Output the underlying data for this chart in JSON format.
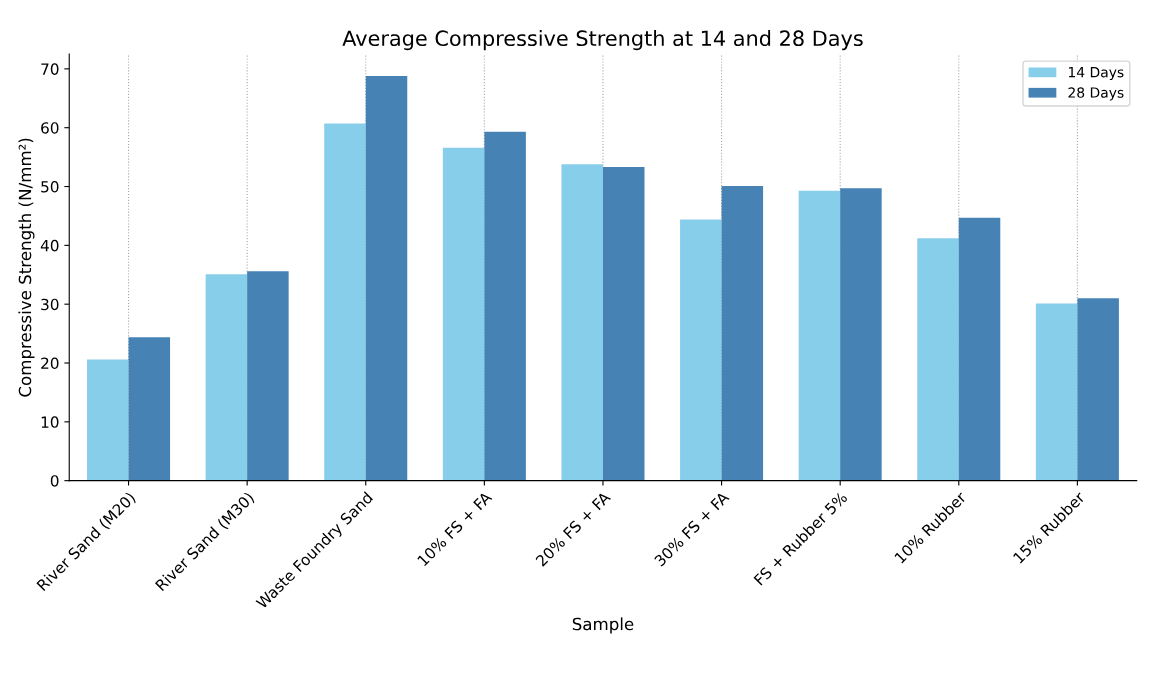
{
  "chart_data": {
    "type": "bar",
    "title": "Average Compressive Strength at 14 and 28 Days",
    "xlabel": "Sample",
    "ylabel": "Compressive Strength (N/mm²)",
    "categories": [
      "River Sand (M20)",
      "River Sand (M30)",
      "Waste Foundry Sand",
      "10% FS + FA",
      "20% FS + FA",
      "30% FS + FA",
      "FS + Rubber 5%",
      "10% Rubber",
      "15% Rubber"
    ],
    "series": [
      {
        "name": "14 Days",
        "color": "#87ceeb",
        "values": [
          20.6,
          35.1,
          60.7,
          56.6,
          53.8,
          44.4,
          49.3,
          41.2,
          30.1
        ]
      },
      {
        "name": "28 Days",
        "color": "#4682b4",
        "values": [
          24.4,
          35.6,
          68.8,
          59.3,
          53.3,
          50.1,
          49.7,
          44.7,
          31.0
        ]
      }
    ],
    "ylim": [
      0,
      72.5
    ],
    "yticks": [
      0,
      10,
      20,
      30,
      40,
      50,
      60,
      70
    ],
    "grid": "x",
    "legend": "top right"
  }
}
